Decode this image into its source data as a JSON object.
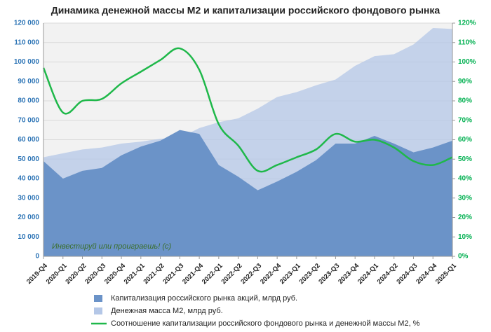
{
  "chart_data": {
    "type": "area",
    "title": "Динамика денежной массы М2 и капитализации российского фондового рынка",
    "annotation": "Инвестируй или проиграешь! (с)",
    "categories": [
      "2019-Q4",
      "2020-Q1",
      "2020-Q2",
      "2020-Q3",
      "2020-Q4",
      "2021-Q1",
      "2021-Q2",
      "2021-Q3",
      "2021-Q4",
      "2022-Q1",
      "2022-Q2",
      "2022-Q3",
      "2022-Q4",
      "2023-Q1",
      "2023-Q2",
      "2023-Q3",
      "2023-Q4",
      "2024-Q1",
      "2024-Q2",
      "2024-Q3",
      "2024-Q4",
      "2025-Q1"
    ],
    "series": [
      {
        "name": "Капитализация российского рынка акций, млрд руб.",
        "type": "area",
        "color": "#6b93c8",
        "values": [
          49000,
          40000,
          44000,
          45500,
          52000,
          56500,
          59500,
          65000,
          63000,
          47000,
          41000,
          34000,
          38500,
          43500,
          49500,
          58000,
          58000,
          62000,
          58000,
          53500,
          56000,
          59500
        ]
      },
      {
        "name": "Денежная масса М2, млрд руб.",
        "type": "area",
        "color": "#b4c7e7",
        "values": [
          51000,
          53000,
          55000,
          56000,
          58000,
          59000,
          60500,
          61000,
          66000,
          69000,
          71000,
          76000,
          82000,
          84500,
          88000,
          91000,
          98000,
          103000,
          104000,
          109000,
          117500,
          117000
        ]
      },
      {
        "name": "Соотношение капитализации российского фондового рынка и денежной массы М2, %",
        "type": "line",
        "axis": "y2",
        "color": "#1fb84a",
        "values": [
          97,
          74,
          80,
          81,
          89,
          95,
          101,
          107,
          96,
          68,
          57,
          44,
          47,
          51,
          55,
          63,
          59,
          60,
          56,
          49,
          47,
          51
        ]
      }
    ],
    "ylim": [
      0,
      120000
    ],
    "yticks": [
      0,
      {
        "value": 10000,
        "label": "10 000"
      },
      {
        "value": 20000,
        "label": "20 000"
      },
      {
        "value": 30000,
        "label": "30 000"
      },
      {
        "value": 40000,
        "label": "40 000"
      },
      {
        "value": 50000,
        "label": "50 000"
      },
      {
        "value": 60000,
        "label": "60 000"
      },
      {
        "value": 70000,
        "label": "70 000"
      },
      {
        "value": 80000,
        "label": "80 000"
      },
      {
        "value": 90000,
        "label": "90 000"
      },
      {
        "value": 100000,
        "label": "100 000"
      },
      {
        "value": 110000,
        "label": "110 000"
      },
      {
        "value": 120000,
        "label": "120 000"
      }
    ],
    "y2lim": [
      0,
      120
    ],
    "y2ticks": [
      {
        "value": 0,
        "label": "0%"
      },
      {
        "value": 10,
        "label": "10%"
      },
      {
        "value": 20,
        "label": "20%"
      },
      {
        "value": 30,
        "label": "30%"
      },
      {
        "value": 40,
        "label": "40%"
      },
      {
        "value": 50,
        "label": "50%"
      },
      {
        "value": 60,
        "label": "60%"
      },
      {
        "value": 70,
        "label": "70%"
      },
      {
        "value": 80,
        "label": "80%"
      },
      {
        "value": 90,
        "label": "90%"
      },
      {
        "value": 100,
        "label": "100%"
      },
      {
        "value": 110,
        "label": "110%"
      },
      {
        "value": 120,
        "label": "120%"
      }
    ],
    "grid": true
  }
}
